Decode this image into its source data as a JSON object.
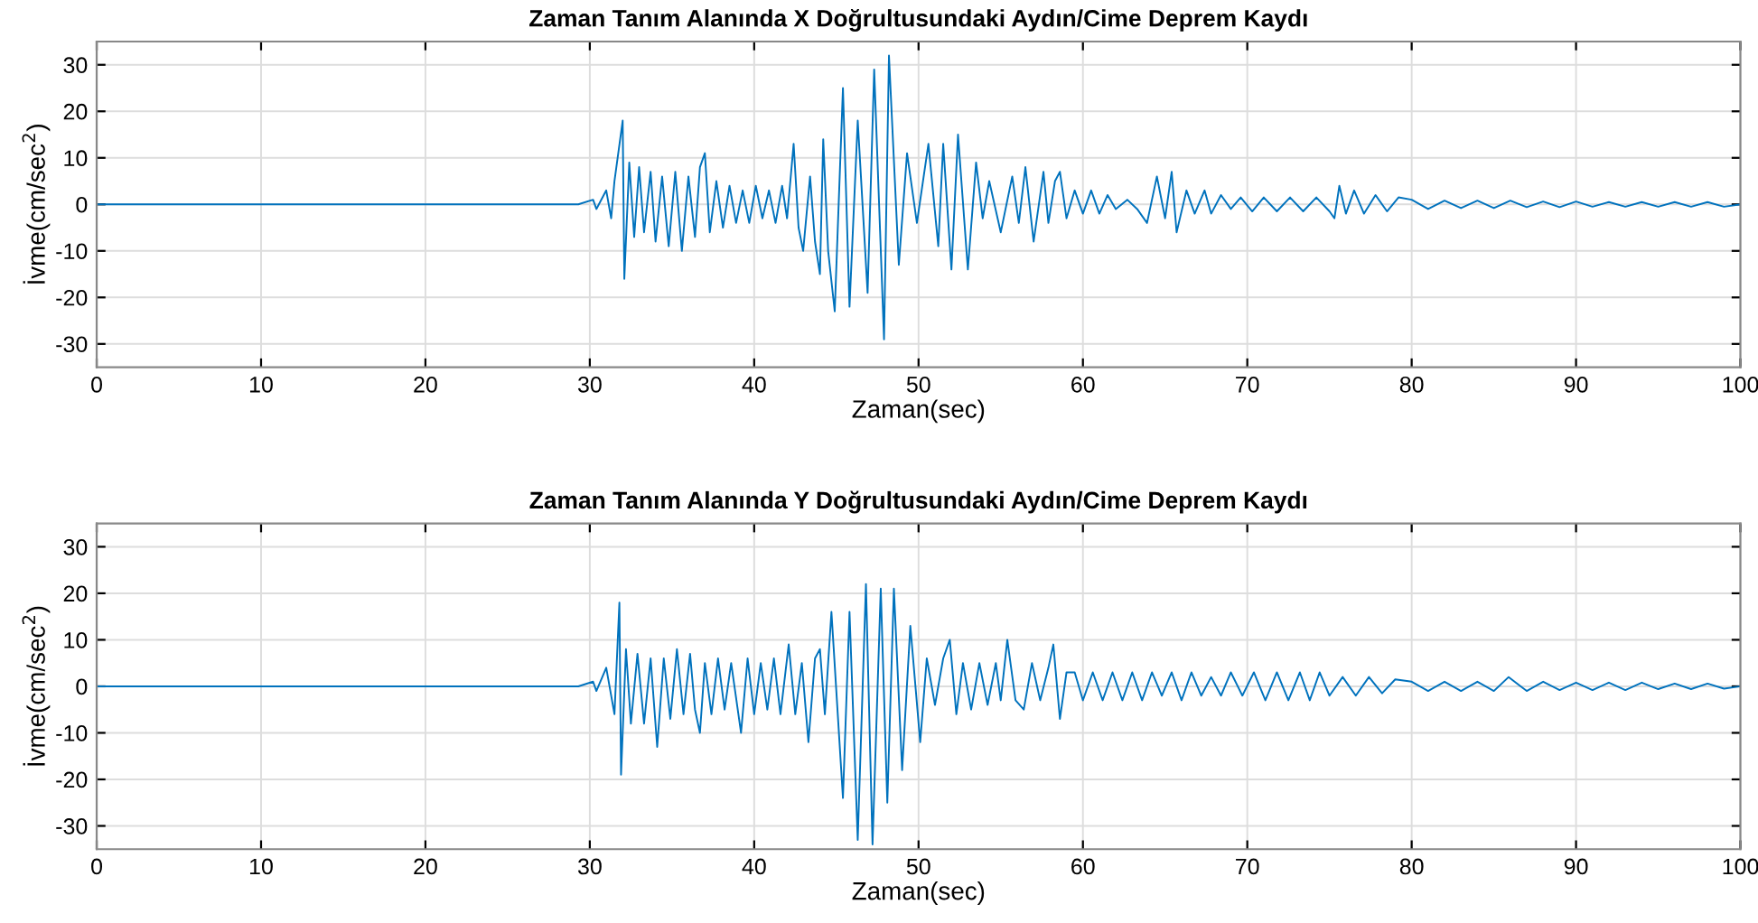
{
  "chart_data": [
    {
      "type": "line",
      "title": "Zaman Tanım Alanında X Doğrultusundaki Aydın/Cime Deprem Kaydı",
      "xlabel": "Zaman(sec)",
      "ylabel": "İvme(cm/sec$^{2}$)",
      "xlim": [
        0,
        100
      ],
      "xticks": [
        0,
        10,
        20,
        30,
        40,
        50,
        60,
        70,
        80,
        90,
        100
      ],
      "ylim": [
        -35,
        35
      ],
      "yticks": [
        -30,
        -20,
        -10,
        0,
        10,
        20,
        30
      ],
      "grid": true,
      "marker": "none",
      "line_style": "solid",
      "series": [
        {
          "color": "#0072bd",
          "x": [
            0,
            29,
            29.3,
            30.2,
            30.4,
            31,
            31.3,
            31.5,
            32.0,
            32.1,
            32.4,
            32.7,
            33,
            33.3,
            33.7,
            34,
            34.4,
            34.8,
            35.2,
            35.6,
            36,
            36.4,
            36.7,
            37.0,
            37.3,
            37.7,
            38.1,
            38.5,
            38.9,
            39.3,
            39.7,
            40.1,
            40.5,
            40.9,
            41.3,
            41.7,
            42.0,
            42.4,
            42.7,
            42.98,
            43.4,
            43.7,
            44.0,
            44.2,
            44.5,
            44.9,
            45.4,
            45.8,
            46.3,
            46.9,
            47.3,
            47.9,
            48.2,
            48.8,
            49.3,
            49.9,
            50.6,
            51.2,
            51.5,
            52.0,
            52.4,
            53.0,
            53.5,
            53.9,
            54.3,
            55.0,
            55.7,
            56.1,
            56.5,
            57.0,
            57.6,
            57.9,
            58.3,
            58.6,
            59.0,
            59.5,
            60.0,
            60.5,
            61.0,
            61.5,
            62.0,
            62.7,
            63.3,
            63.9,
            64.5,
            65.0,
            65.4,
            65.7,
            66.3,
            66.8,
            67.4,
            67.8,
            68.4,
            69.0,
            69.6,
            70.3,
            71.0,
            71.8,
            72.6,
            73.4,
            74.2,
            75.0,
            75.3,
            75.6,
            76.0,
            76.5,
            77.1,
            77.8,
            78.5,
            79.2,
            80.0,
            81.0,
            82.0,
            83.0,
            84.0,
            85.0,
            86.0,
            87.0,
            88.0,
            89.0,
            90.0,
            91.0,
            92.0,
            93.0,
            94.0,
            95.0,
            96.0,
            97.0,
            98.0,
            99.0,
            100
          ],
          "values": [
            0,
            0,
            0,
            1,
            -1,
            3,
            -3,
            5,
            18,
            -16,
            9,
            -7,
            8,
            -6,
            7,
            -8,
            6,
            -9,
            7,
            -10,
            6,
            -7,
            8,
            11,
            -6,
            5,
            -5,
            4,
            -4,
            3,
            -4,
            4,
            -3,
            3,
            -4,
            4,
            -3,
            13,
            -5,
            -10,
            6,
            -8,
            -15,
            14,
            -10,
            -23,
            25,
            -22,
            18,
            -19,
            29,
            -29,
            32,
            -13,
            11,
            -4,
            13,
            -9,
            13,
            -14,
            15,
            -14,
            9,
            -3,
            5,
            -6,
            6,
            -4,
            8,
            -8,
            7,
            -4,
            5,
            7,
            -3,
            3,
            -2,
            3,
            -2,
            2,
            -1,
            1,
            -1,
            -4,
            6,
            -3,
            7,
            -6,
            3,
            -2,
            3,
            -2,
            2,
            -1,
            1.5,
            -1.5,
            1.5,
            -1.5,
            1.5,
            -1.5,
            1.5,
            -1.5,
            -3,
            4,
            -2,
            3,
            -2,
            2,
            -1.5,
            1.5,
            1,
            -1,
            0.8,
            -0.8,
            0.8,
            -0.8,
            0.8,
            -0.6,
            0.6,
            -0.6,
            0.6,
            -0.5,
            0.5,
            -0.5,
            0.5,
            -0.5,
            0.5,
            -0.5,
            0.5,
            -0.5,
            0
          ]
        }
      ]
    },
    {
      "type": "line",
      "title": "Zaman Tanım Alanında Y Doğrultusundaki Aydın/Cime Deprem Kaydı",
      "xlabel": "Zaman(sec)",
      "ylabel": "İvme(cm/sec$^{2}$)",
      "xlim": [
        0,
        100
      ],
      "xticks": [
        0,
        10,
        20,
        30,
        40,
        50,
        60,
        70,
        80,
        90,
        100
      ],
      "ylim": [
        -35,
        35
      ],
      "yticks": [
        -30,
        -20,
        -10,
        0,
        10,
        20,
        30
      ],
      "grid": true,
      "marker": "none",
      "line_style": "solid",
      "series": [
        {
          "color": "#0072bd",
          "x": [
            0,
            29,
            29.3,
            30.2,
            30.4,
            31,
            31.5,
            31.8,
            31.9,
            32.2,
            32.5,
            32.9,
            33.3,
            33.7,
            34.1,
            34.5,
            34.9,
            35.3,
            35.7,
            36.1,
            36.4,
            36.7,
            37.0,
            37.4,
            37.8,
            38.2,
            38.6,
            39.2,
            39.6,
            40.0,
            40.4,
            40.8,
            41.2,
            41.6,
            42.1,
            42.5,
            42.9,
            43.3,
            43.7,
            44.0,
            44.3,
            44.7,
            45.4,
            45.8,
            46.3,
            46.8,
            47.2,
            47.7,
            48.1,
            48.5,
            49.0,
            49.5,
            50.1,
            50.5,
            51.0,
            51.5,
            51.9,
            52.3,
            52.7,
            53.2,
            53.7,
            54.2,
            54.7,
            55.0,
            55.4,
            55.9,
            56.4,
            56.9,
            57.4,
            57.9,
            58.2,
            58.6,
            59.0,
            59.5,
            60.0,
            60.6,
            61.2,
            61.8,
            62.4,
            63.0,
            63.6,
            64.2,
            64.8,
            65.4,
            66.0,
            66.6,
            67.2,
            67.8,
            68.4,
            69.0,
            69.7,
            70.4,
            71.1,
            71.8,
            72.5,
            73.2,
            73.8,
            74.4,
            75.0,
            75.8,
            76.6,
            77.4,
            78.2,
            79.0,
            80.0,
            81.0,
            82.0,
            83.0,
            84.0,
            85.0,
            85.9,
            87.0,
            88.0,
            89.0,
            90.0,
            91.0,
            92.0,
            93.0,
            94.0,
            95.0,
            96.0,
            97.0,
            98.0,
            99.0,
            100
          ],
          "values": [
            0,
            0,
            0,
            1,
            -1,
            4,
            -6,
            18,
            -19,
            8,
            -8,
            7,
            -8,
            6,
            -13,
            6,
            -7,
            8,
            -6,
            7,
            -5,
            -10,
            5,
            -6,
            6,
            -5,
            5,
            -10,
            6,
            -6,
            5,
            -5,
            6,
            -6,
            9,
            -6,
            5,
            -12,
            6,
            8,
            -6,
            16,
            -24,
            16,
            -33,
            22,
            -34,
            21,
            -25,
            21,
            -18,
            13,
            -12,
            6,
            -4,
            6,
            10,
            -6,
            5,
            -5,
            5,
            -4,
            5,
            -3,
            10,
            -3,
            -5,
            5,
            -3,
            4,
            9,
            -7,
            3,
            3,
            -3,
            3,
            -3,
            3,
            -3,
            3,
            -3,
            3,
            -2,
            3,
            -3,
            3,
            -2,
            2,
            -2,
            3,
            -2,
            3,
            -3,
            3,
            -3,
            3,
            -3,
            3,
            -2,
            2,
            -2,
            2,
            -1.5,
            1.5,
            1,
            -1,
            1,
            -1,
            1,
            -1,
            2,
            -1,
            1,
            -0.8,
            0.8,
            -0.8,
            0.8,
            -0.8,
            0.8,
            -0.6,
            0.6,
            -0.6,
            0.6,
            -0.5,
            0
          ]
        }
      ]
    }
  ]
}
